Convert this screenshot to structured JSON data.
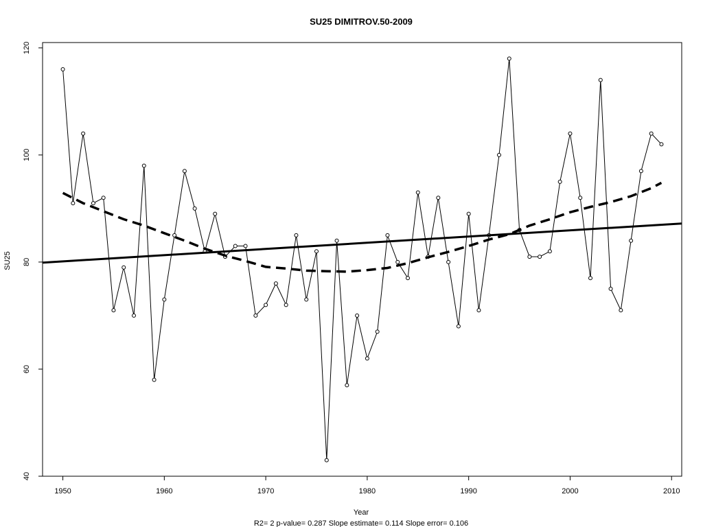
{
  "chart_data": {
    "type": "line",
    "title": "SU25    DIMITROV.50-2009",
    "xlabel": "Year",
    "ylabel": "SU25",
    "footer": "R2= 2  p-value= 0.287  Slope estimate= 0.114  Slope error= 0.106",
    "xlim": [
      1948,
      2011
    ],
    "ylim": [
      40,
      121
    ],
    "x_ticks": [
      1950,
      1960,
      1970,
      1980,
      1990,
      2000,
      2010
    ],
    "y_ticks": [
      40,
      60,
      80,
      100,
      120
    ],
    "grid": false,
    "series": [
      {
        "style": "observed",
        "x": [
          1950,
          1951,
          1952,
          1953,
          1954,
          1955,
          1956,
          1957,
          1958,
          1959,
          1960,
          1961,
          1962,
          1963,
          1964,
          1965,
          1966,
          1967,
          1968,
          1969,
          1970,
          1971,
          1972,
          1973,
          1974,
          1975,
          1976,
          1977,
          1978,
          1979,
          1980,
          1981,
          1982,
          1983,
          1984,
          1985,
          1986,
          1987,
          1988,
          1989,
          1990,
          1991,
          1992,
          1993,
          1994,
          1995,
          1996,
          1997,
          1998,
          1999,
          2000,
          2001,
          2002,
          2003,
          2004,
          2005,
          2006,
          2007,
          2008,
          2009
        ],
        "values": [
          116,
          91,
          104,
          91,
          92,
          71,
          79,
          70,
          98,
          58,
          73,
          85,
          97,
          90,
          82,
          89,
          81,
          83,
          83,
          70,
          72,
          76,
          72,
          85,
          73,
          82,
          43,
          84,
          57,
          70,
          62,
          67,
          85,
          80,
          77,
          93,
          81,
          92,
          80,
          68,
          89,
          71,
          85,
          100,
          118,
          86,
          81,
          81,
          82,
          95,
          104,
          92,
          77,
          114,
          75,
          71,
          84,
          97,
          104,
          102
        ]
      },
      {
        "style": "linear-trend",
        "x": [
          1948,
          2011
        ],
        "values": [
          79.9,
          87.2
        ]
      },
      {
        "style": "smoothed-trend",
        "x": [
          1950,
          1952,
          1954,
          1956,
          1958,
          1960,
          1962,
          1964,
          1966,
          1968,
          1970,
          1972,
          1974,
          1976,
          1978,
          1980,
          1982,
          1984,
          1986,
          1988,
          1990,
          1992,
          1994,
          1996,
          1998,
          2000,
          2002,
          2004,
          2006,
          2008,
          2009
        ],
        "values": [
          92.9,
          91.0,
          89.5,
          88.0,
          86.8,
          85.4,
          84.0,
          82.5,
          81.2,
          80.2,
          79.1,
          78.8,
          78.4,
          78.3,
          78.2,
          78.5,
          78.9,
          79.8,
          80.9,
          81.9,
          83.0,
          84.2,
          85.2,
          86.8,
          88.0,
          89.3,
          90.3,
          91.2,
          92.3,
          93.8,
          94.8
        ]
      }
    ]
  }
}
